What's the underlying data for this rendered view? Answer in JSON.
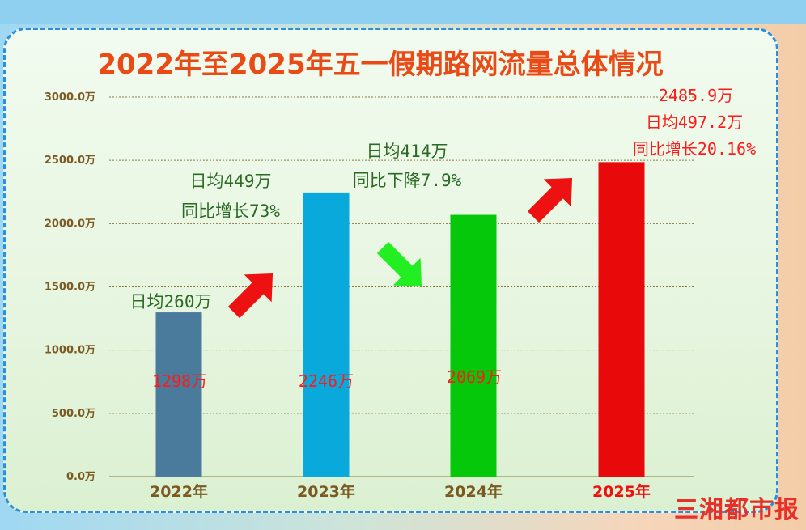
{
  "title": "2022年至2025年五一假期路网流量总体情况",
  "logo": "三湘都市报",
  "colors": {
    "title": "#e94a16",
    "grid": "#8a7a3a",
    "tick_label": "#7a5a22",
    "value_label": "#ff1a1a",
    "annotation_green": "#2a6a22",
    "annotation_red": "#ff1a1a",
    "arrow_up": "#ee1111",
    "arrow_down": "#22ee22"
  },
  "chart_data": {
    "type": "bar",
    "categories": [
      "2022年",
      "2023年",
      "2024年",
      "2025年"
    ],
    "values": [
      1298,
      2246,
      2069,
      2485.9
    ],
    "value_labels": [
      "1298万",
      "2246万",
      "2069万",
      "2485.9万"
    ],
    "bar_colors": [
      "#4a7b9c",
      "#0aa9dc",
      "#06c80a",
      "#e80a0a"
    ],
    "category_label_colors": [
      "#7a5a22",
      "#7a5a22",
      "#7a5a22",
      "#ee1111"
    ],
    "ylim": [
      0,
      3000
    ],
    "y_ticks": [
      0,
      500,
      1000,
      1500,
      2000,
      2500,
      3000
    ],
    "y_tick_labels": [
      "0.0万",
      "500.0万",
      "1000.0万",
      "1500.0万",
      "2000.0万",
      "2500.0万",
      "3000.0万"
    ],
    "grid": true,
    "annotations": [
      {
        "lines": [
          "日均260万"
        ]
      },
      {
        "lines": [
          "日均449万",
          "同比增长73%"
        ]
      },
      {
        "lines": [
          "日均414万",
          "同比下降7.9%"
        ]
      },
      {
        "lines": [
          "日均497.2万",
          "同比增长20.16%"
        ]
      }
    ],
    "trend_arrows": [
      "up",
      "down",
      "up"
    ]
  }
}
